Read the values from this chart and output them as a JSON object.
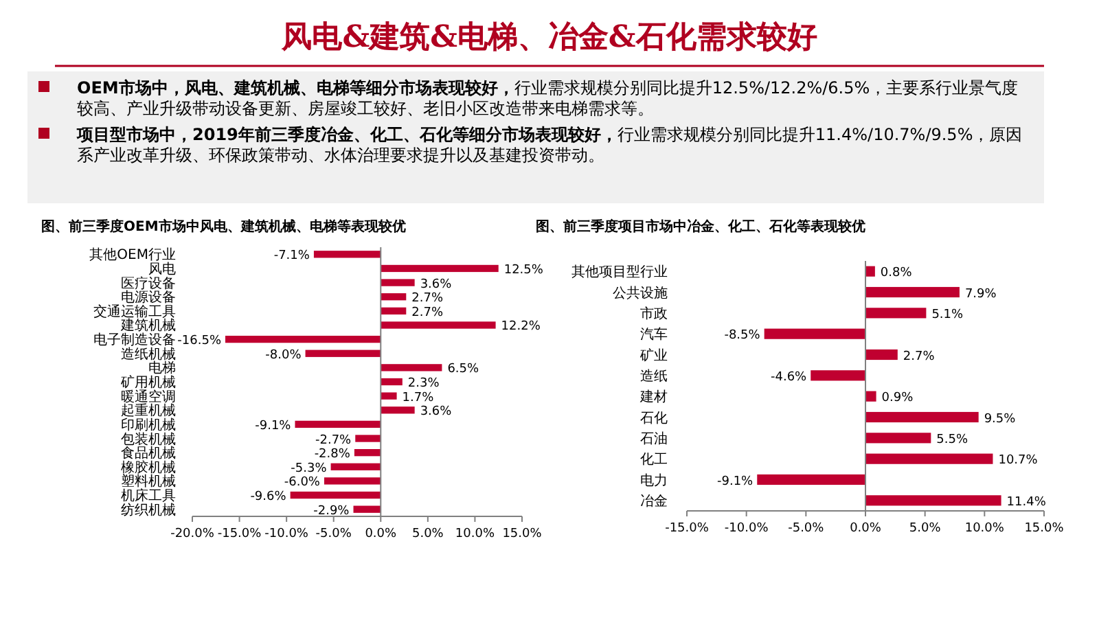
{
  "chart_data": [
    {
      "type": "other",
      "title": "风电&建筑&电梯、冶金&石化需求较好",
      "annotations": [
        "OEM市场中，风电、建筑机械、电梯等细分市场表现较好，",
        "行业需求规模分别同比提升12.5%/12.2%/6.5%，主要系行业景气度较高、产业升级带动设备更新、房屋竣工较好、老旧小区改造带来电梯需求等。",
        "项目型市场中，2019年前三季度冶金、化工、石化等细分市场表现较好，",
        "行业需求规模分别同比提升11.4%/10.7%/9.5%，原因系产业改革升级、环保政策带动、水体治理要求提升以及基建投资带动。"
      ]
    },
    {
      "type": "bar",
      "orientation": "horizontal",
      "title": "图、前三季度OEM市场中风电、建筑机械、电梯等表现较优",
      "categories": [
        "其他OEM行业",
        "风电",
        "医疗设备",
        "电源设备",
        "交通运输工具",
        "建筑机械",
        "电子制造设备",
        "造纸机械",
        "电梯",
        "矿用机械",
        "暖通空调",
        "起重机械",
        "印刷机械",
        "包装机械",
        "食品机械",
        "橡胶机械",
        "塑料机械",
        "机床工具",
        "纺织机械"
      ],
      "values": [
        -7.1,
        12.5,
        3.6,
        2.7,
        2.7,
        12.2,
        -16.5,
        -8.0,
        6.5,
        2.3,
        1.7,
        3.6,
        -9.1,
        -2.7,
        -2.8,
        -5.3,
        -6.0,
        -9.6,
        -2.9
      ],
      "value_labels": [
        "-7.1%",
        "12.5%",
        "3.6%",
        "2.7%",
        "2.7%",
        "12.2%",
        "-16.5%",
        "-8.0%",
        "6.5%",
        "2.3%",
        "1.7%",
        "3.6%",
        "-9.1%",
        "-2.7%",
        "-2.8%",
        "-5.3%",
        "-6.0%",
        "-9.6%",
        "-2.9%"
      ],
      "color": "#c00030",
      "xlim": [
        -20,
        15
      ],
      "xticks": [
        {
          "value": -20,
          "label": "-20.0%"
        },
        {
          "value": -15,
          "label": "-15.0%"
        },
        {
          "value": -10,
          "label": "-10.0%"
        },
        {
          "value": -5,
          "label": "-5.0%"
        },
        {
          "value": 0,
          "label": "0.0%"
        },
        {
          "value": 5,
          "label": "5.0%"
        },
        {
          "value": 10,
          "label": "10.0%"
        },
        {
          "value": 15,
          "label": "15.0%"
        }
      ]
    },
    {
      "type": "bar",
      "orientation": "horizontal",
      "title": "图、前三季度项目市场中冶金、化工、石化等表现较优",
      "categories": [
        "其他项目型行业",
        "公共设施",
        "市政",
        "汽车",
        "矿业",
        "造纸",
        "建材",
        "石化",
        "石油",
        "化工",
        "电力",
        "冶金"
      ],
      "values": [
        0.8,
        7.9,
        5.1,
        -8.5,
        2.7,
        -4.6,
        0.9,
        9.5,
        5.5,
        10.7,
        -9.1,
        11.4
      ],
      "value_labels": [
        "0.8%",
        "7.9%",
        "5.1%",
        "-8.5%",
        "2.7%",
        "-4.6%",
        "0.9%",
        "9.5%",
        "5.5%",
        "10.7%",
        "-9.1%",
        "11.4%"
      ],
      "color": "#c00030",
      "xlim": [
        -15,
        15
      ],
      "xticks": [
        {
          "value": -15,
          "label": "-15.0%"
        },
        {
          "value": -10,
          "label": "-10.0%"
        },
        {
          "value": -5,
          "label": "-5.0%"
        },
        {
          "value": 0,
          "label": "0.0%"
        },
        {
          "value": 5,
          "label": "5.0%"
        },
        {
          "value": 10,
          "label": "10.0%"
        },
        {
          "value": 15,
          "label": "15.0%"
        }
      ]
    }
  ]
}
